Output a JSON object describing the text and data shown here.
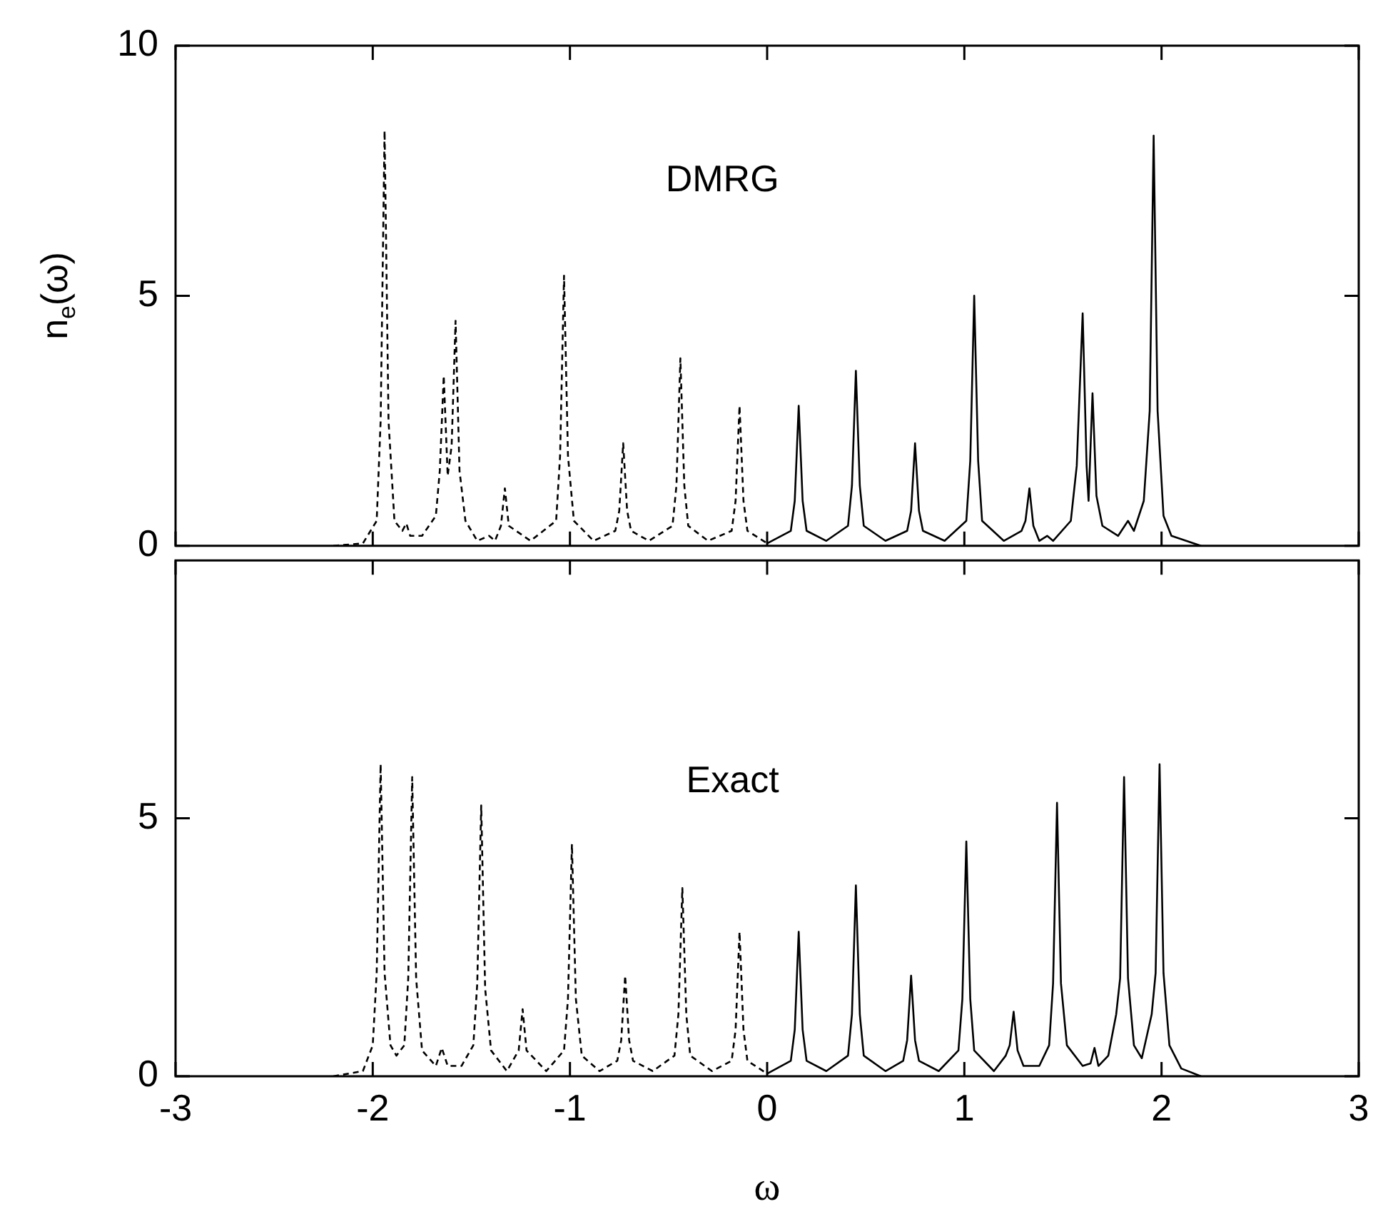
{
  "chart_data": [
    {
      "type": "line",
      "ylabel": "n$_{e}$(ω)",
      "annotations": [
        "DMRG"
      ],
      "xlim": [
        -3,
        3
      ],
      "xticks": [
        -3,
        -2,
        -1,
        0,
        1,
        2,
        3
      ],
      "ylim": [
        0,
        10
      ],
      "yticks": [
        0,
        5,
        10
      ],
      "tick_labels": "y",
      "legend": false,
      "marker": "none",
      "series": [
        {
          "color": "#000000",
          "line_style": "dashed",
          "x": [
            -2.2,
            -2.05,
            -1.98,
            -1.96,
            -1.94,
            -1.92,
            -1.89,
            -1.85,
            -1.83,
            -1.81,
            -1.75,
            -1.68,
            -1.66,
            -1.64,
            -1.62,
            -1.6,
            -1.58,
            -1.56,
            -1.53,
            -1.47,
            -1.41,
            -1.38,
            -1.35,
            -1.33,
            -1.31,
            -1.2,
            -1.07,
            -1.05,
            -1.03,
            -1.01,
            -0.98,
            -0.88,
            -0.77,
            -0.75,
            -0.73,
            -0.71,
            -0.69,
            -0.6,
            -0.48,
            -0.46,
            -0.44,
            -0.42,
            -0.4,
            -0.3,
            -0.18,
            -0.16,
            -0.14,
            -0.12,
            -0.1,
            0
          ],
          "values": [
            0,
            0.05,
            0.5,
            2.5,
            8.3,
            2.5,
            0.5,
            0.3,
            0.45,
            0.2,
            0.2,
            0.6,
            1.5,
            3.4,
            1.4,
            2,
            4.5,
            1.5,
            0.5,
            0.1,
            0.2,
            0.1,
            0.4,
            1.15,
            0.4,
            0.1,
            0.5,
            1.8,
            5.4,
            1.8,
            0.5,
            0.1,
            0.3,
            0.7,
            2.05,
            0.7,
            0.3,
            0.1,
            0.4,
            1.2,
            3.75,
            1.2,
            0.4,
            0.1,
            0.3,
            0.9,
            2.8,
            0.9,
            0.3,
            0.05
          ]
        },
        {
          "color": "#000000",
          "line_style": "solid",
          "x": [
            0,
            0.12,
            0.14,
            0.16,
            0.18,
            0.2,
            0.3,
            0.41,
            0.43,
            0.45,
            0.47,
            0.49,
            0.6,
            0.71,
            0.73,
            0.75,
            0.77,
            0.79,
            0.9,
            1.01,
            1.03,
            1.05,
            1.07,
            1.09,
            1.2,
            1.29,
            1.31,
            1.33,
            1.35,
            1.38,
            1.42,
            1.45,
            1.54,
            1.57,
            1.6,
            1.62,
            1.63,
            1.65,
            1.67,
            1.7,
            1.78,
            1.83,
            1.86,
            1.91,
            1.94,
            1.96,
            1.98,
            2.01,
            2.05,
            2.2
          ],
          "values": [
            0.05,
            0.3,
            0.9,
            2.8,
            0.9,
            0.3,
            0.1,
            0.4,
            1.2,
            3.5,
            1.2,
            0.4,
            0.1,
            0.3,
            0.7,
            2.05,
            0.7,
            0.3,
            0.1,
            0.5,
            1.7,
            5,
            1.7,
            0.5,
            0.1,
            0.3,
            0.5,
            1.15,
            0.4,
            0.1,
            0.2,
            0.1,
            0.5,
            1.6,
            4.65,
            1.6,
            0.9,
            3.05,
            1,
            0.4,
            0.2,
            0.5,
            0.3,
            0.9,
            2.7,
            8.2,
            2.7,
            0.6,
            0.2,
            0
          ]
        }
      ]
    },
    {
      "type": "line",
      "xlabel": "ω",
      "annotations": [
        "Exact"
      ],
      "xlim": [
        -3,
        3
      ],
      "xticks": [
        -3,
        -2,
        -1,
        0,
        1,
        2,
        3
      ],
      "ylim": [
        0,
        10
      ],
      "yticks": [
        0,
        5
      ],
      "legend": false,
      "marker": "none",
      "series": [
        {
          "color": "#000000",
          "line_style": "dashed",
          "x": [
            -2.2,
            -2.05,
            -2,
            -1.98,
            -1.96,
            -1.94,
            -1.91,
            -1.88,
            -1.84,
            -1.82,
            -1.8,
            -1.78,
            -1.75,
            -1.68,
            -1.65,
            -1.62,
            -1.55,
            -1.49,
            -1.47,
            -1.45,
            -1.43,
            -1.4,
            -1.32,
            -1.26,
            -1.24,
            -1.22,
            -1.12,
            -1.03,
            -1.01,
            -0.99,
            -0.97,
            -0.94,
            -0.85,
            -0.76,
            -0.74,
            -0.72,
            -0.7,
            -0.68,
            -0.58,
            -0.47,
            -0.45,
            -0.43,
            -0.41,
            -0.39,
            -0.28,
            -0.18,
            -0.16,
            -0.14,
            -0.12,
            -0.1,
            0
          ],
          "values": [
            0,
            0.1,
            0.6,
            2,
            6.05,
            2,
            0.6,
            0.4,
            0.6,
            1.9,
            5.8,
            1.9,
            0.5,
            0.2,
            0.55,
            0.2,
            0.2,
            0.6,
            1.8,
            5.25,
            1.7,
            0.5,
            0.1,
            0.5,
            1.3,
            0.5,
            0.1,
            0.5,
            1.5,
            4.5,
            1.5,
            0.4,
            0.1,
            0.3,
            0.7,
            1.95,
            0.7,
            0.3,
            0.1,
            0.4,
            1.2,
            3.65,
            1.2,
            0.4,
            0.1,
            0.3,
            0.9,
            2.8,
            0.9,
            0.3,
            0.05
          ]
        },
        {
          "color": "#000000",
          "line_style": "solid",
          "x": [
            0,
            0.12,
            0.14,
            0.16,
            0.18,
            0.2,
            0.3,
            0.41,
            0.43,
            0.45,
            0.47,
            0.49,
            0.6,
            0.69,
            0.71,
            0.73,
            0.75,
            0.77,
            0.87,
            0.97,
            0.99,
            1.01,
            1.03,
            1.05,
            1.15,
            1.21,
            1.23,
            1.25,
            1.27,
            1.3,
            1.38,
            1.43,
            1.45,
            1.47,
            1.49,
            1.52,
            1.6,
            1.64,
            1.66,
            1.68,
            1.73,
            1.77,
            1.79,
            1.81,
            1.83,
            1.86,
            1.9,
            1.95,
            1.97,
            1.99,
            2.01,
            2.04,
            2.1,
            2.2
          ],
          "values": [
            0.05,
            0.3,
            0.9,
            2.8,
            0.9,
            0.3,
            0.1,
            0.4,
            1.2,
            3.7,
            1.2,
            0.4,
            0.1,
            0.3,
            0.7,
            1.95,
            0.7,
            0.3,
            0.1,
            0.5,
            1.5,
            4.55,
            1.5,
            0.5,
            0.1,
            0.4,
            0.6,
            1.25,
            0.5,
            0.2,
            0.2,
            0.6,
            1.8,
            5.3,
            1.8,
            0.6,
            0.2,
            0.25,
            0.55,
            0.2,
            0.4,
            1.2,
            1.9,
            5.8,
            1.9,
            0.6,
            0.35,
            1.2,
            2,
            6.05,
            2,
            0.6,
            0.15,
            0
          ]
        }
      ]
    }
  ]
}
